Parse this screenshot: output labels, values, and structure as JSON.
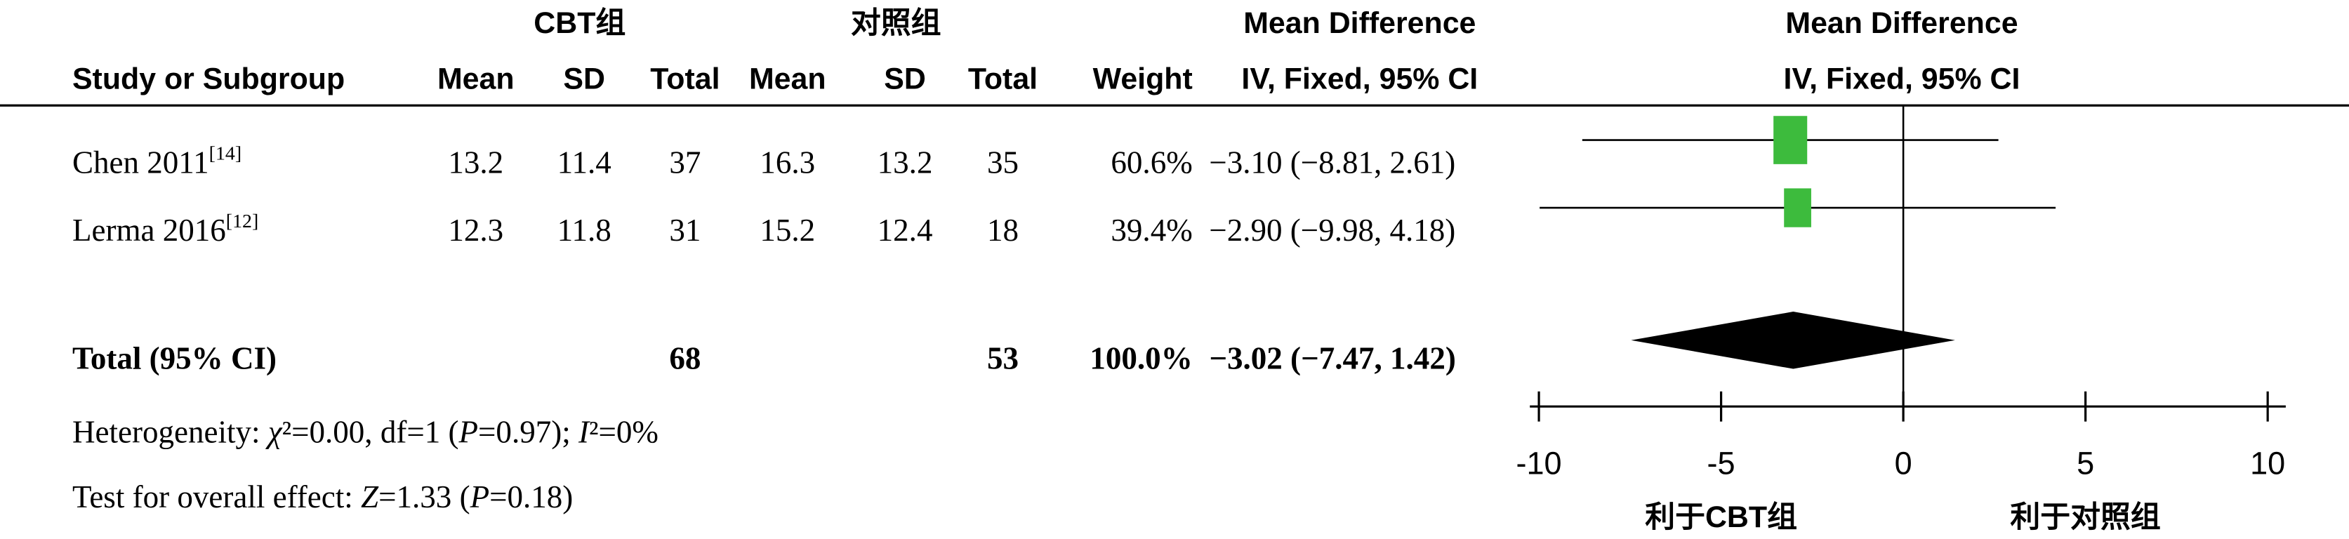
{
  "chart_data": {
    "type": "forest",
    "group_headers": [
      "CBT组",
      "对照组"
    ],
    "effect_header": [
      "Mean Difference",
      "IV, Fixed, 95% CI"
    ],
    "plot_header": [
      "Mean Difference",
      "IV, Fixed, 95% CI"
    ],
    "columns": [
      "Study or Subgroup",
      "Mean",
      "SD",
      "Total",
      "Mean",
      "SD",
      "Total",
      "Weight"
    ],
    "studies": [
      {
        "name": "Chen 2011",
        "ref": "[14]",
        "values": [
          13.2,
          11.4,
          37,
          16.3,
          13.2,
          35
        ],
        "weight": 60.6,
        "weight_label": "60.6%",
        "md": -3.1,
        "lo": -8.81,
        "hi": 2.61,
        "ci_label": "−3.10 (−8.81, 2.61)"
      },
      {
        "name": "Lerma 2016",
        "ref": "[12]",
        "values": [
          12.3,
          11.8,
          31,
          15.2,
          12.4,
          18
        ],
        "weight": 39.4,
        "weight_label": "39.4%",
        "md": -2.9,
        "lo": -9.98,
        "hi": 4.18,
        "ci_label": "−2.90 (−9.98, 4.18)"
      }
    ],
    "total": {
      "name": "Total (95% CI)",
      "n1": 68,
      "n2": 53,
      "weight": 100.0,
      "weight_label": "100.0%",
      "md": -3.02,
      "lo": -7.47,
      "hi": 1.42,
      "ci_label": "−3.02 (−7.47, 1.42)"
    },
    "heterogeneity": [
      "Heterogeneity: ",
      "χ",
      "²=0.00, df=1 (",
      "P",
      "=0.97); ",
      "I",
      "²=0%"
    ],
    "overall_effect": [
      "Test for overall effect: ",
      "Z",
      "=1.33 (",
      "P",
      "=0.18)"
    ],
    "xlim": [
      -10,
      10
    ],
    "xticks": [
      -10,
      -5,
      0,
      5,
      10
    ],
    "favours": [
      "利于CBT组",
      "利于对照组"
    ],
    "color": "#3dbb3d",
    "diamond_color": "#000000"
  }
}
